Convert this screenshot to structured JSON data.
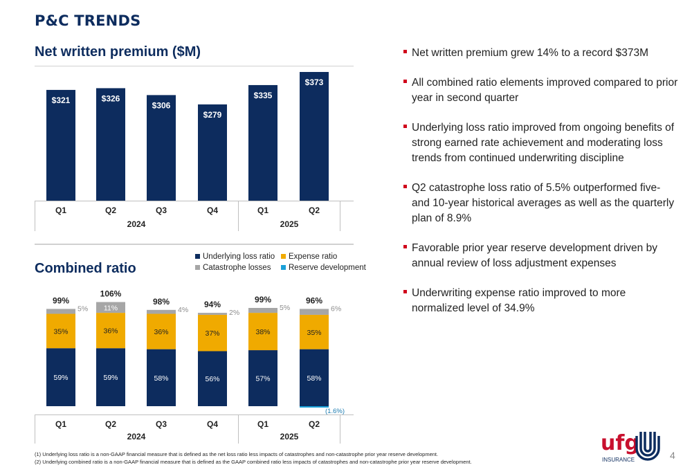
{
  "title": "P&C TRENDS",
  "premium_title": "Net written premium ($M)",
  "combined_title": "Combined ratio",
  "bullets": [
    "Net written premium grew 14% to a record $373M",
    "All combined ratio elements improved compared to prior year in second quarter",
    "Underlying loss ratio improved from ongoing benefits of strong earned rate achievement and moderating loss trends from continued underwriting discipline",
    "Q2 catastrophe loss ratio of 5.5% outperformed five- and 10-year historical averages as well as the quarterly plan of 8.9%",
    "Favorable prior year reserve development driven by annual review of loss adjustment expenses",
    "Underwriting expense ratio improved to more normalized level of 34.9%"
  ],
  "legend": {
    "underlying": "Underlying loss ratio",
    "expense": "Expense ratio",
    "catastrophe": "Catastrophe losses",
    "reserve": "Reserve development"
  },
  "colors": {
    "navy": "#0d2c5e",
    "gold": "#f0aa00",
    "gray": "#a6a6a6",
    "blue": "#1aa0d8",
    "red": "#d0021b"
  },
  "footnotes": [
    "(1)  Underlying loss ratio is a non-GAAP financial measure that is defined as the net loss ratio less impacts of catastrophes and non-catastrophe prior year reserve development.",
    "(2)  Underlying combined ratio is a non-GAAP financial measure that is defined as the GAAP combined ratio less impacts of catastrophes and non-catastrophe prior year reserve development."
  ],
  "logo": {
    "text": "ufg",
    "sub": "INSURANCE"
  },
  "page_number": "4",
  "chart_data": [
    {
      "type": "bar",
      "title": "Net written premium ($M)",
      "categories": [
        "Q1",
        "Q2",
        "Q3",
        "Q4",
        "Q1",
        "Q2"
      ],
      "years": [
        "2024",
        "2025"
      ],
      "values": [
        321,
        326,
        306,
        279,
        335,
        373
      ],
      "labels": [
        "$321",
        "$326",
        "$306",
        "$279",
        "$335",
        "$373"
      ]
    },
    {
      "type": "bar",
      "title": "Combined ratio",
      "categories": [
        "Q1",
        "Q2",
        "Q3",
        "Q4",
        "Q1",
        "Q2"
      ],
      "years": [
        "2024",
        "2025"
      ],
      "totals": [
        "99%",
        "106%",
        "98%",
        "94%",
        "99%",
        "96%"
      ],
      "series": [
        {
          "name": "Underlying loss ratio",
          "values": [
            59,
            59,
            58,
            56,
            57,
            58
          ],
          "labels": [
            "59%",
            "59%",
            "58%",
            "56%",
            "57%",
            "58%"
          ]
        },
        {
          "name": "Expense ratio",
          "values": [
            35,
            36,
            36,
            37,
            38,
            35
          ],
          "labels": [
            "35%",
            "36%",
            "36%",
            "37%",
            "38%",
            "35%"
          ]
        },
        {
          "name": "Catastrophe losses",
          "values": [
            5,
            11,
            4,
            2,
            5,
            6
          ],
          "labels": [
            "5%",
            "11%",
            "4%",
            "2%",
            "5%",
            "6%"
          ]
        },
        {
          "name": "Reserve development",
          "values": [
            0,
            0,
            0,
            0,
            0,
            -1.6
          ],
          "labels": [
            "",
            "",
            "",
            "",
            "",
            "(1.6%)"
          ]
        }
      ]
    }
  ]
}
